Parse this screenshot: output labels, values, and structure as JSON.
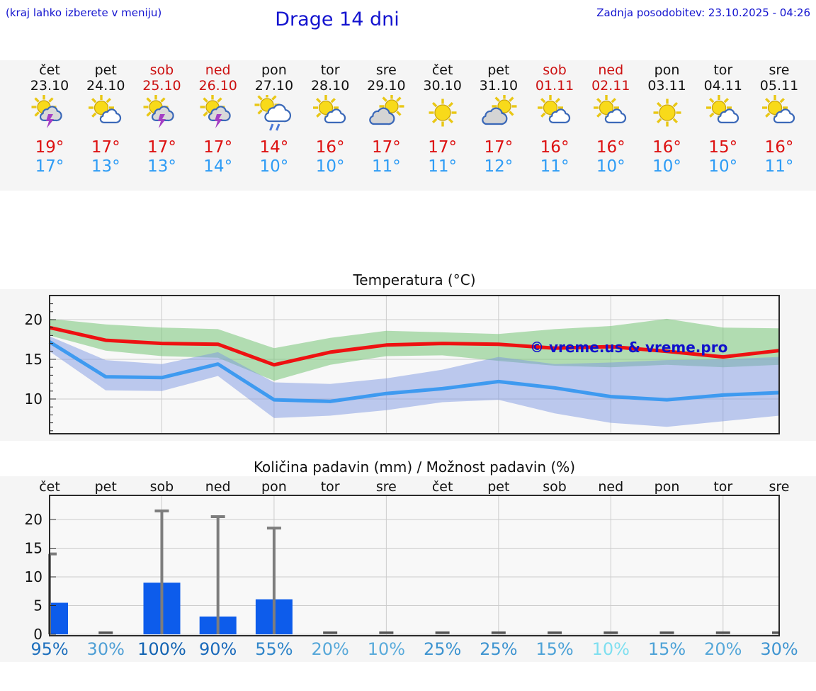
{
  "header": {
    "hint": "(kraj lahko izberete v meniju)",
    "title": "Drage 14 dni",
    "updated": "Zadnja posodobitev: 23.10.2025 - 04:26"
  },
  "forecast": {
    "days": [
      {
        "name": "čet",
        "date": "23.10",
        "weekend": false,
        "icon": "sun-thunder",
        "hi": "19°",
        "lo": "17°"
      },
      {
        "name": "pet",
        "date": "24.10",
        "weekend": false,
        "icon": "sun-cloud",
        "hi": "17°",
        "lo": "13°"
      },
      {
        "name": "sob",
        "date": "25.10",
        "weekend": true,
        "icon": "sun-thunder",
        "hi": "17°",
        "lo": "13°"
      },
      {
        "name": "ned",
        "date": "26.10",
        "weekend": true,
        "icon": "sun-thunder",
        "hi": "17°",
        "lo": "14°"
      },
      {
        "name": "pon",
        "date": "27.10",
        "weekend": false,
        "icon": "sun-rain",
        "hi": "14°",
        "lo": "10°"
      },
      {
        "name": "tor",
        "date": "28.10",
        "weekend": false,
        "icon": "sun-cloud",
        "hi": "16°",
        "lo": "10°"
      },
      {
        "name": "sre",
        "date": "29.10",
        "weekend": false,
        "icon": "cloud-sun",
        "hi": "17°",
        "lo": "11°"
      },
      {
        "name": "čet",
        "date": "30.10",
        "weekend": false,
        "icon": "sun",
        "hi": "17°",
        "lo": "11°"
      },
      {
        "name": "pet",
        "date": "31.10",
        "weekend": false,
        "icon": "cloud-sun",
        "hi": "17°",
        "lo": "12°"
      },
      {
        "name": "sob",
        "date": "01.11",
        "weekend": true,
        "icon": "sun-cloud",
        "hi": "16°",
        "lo": "11°"
      },
      {
        "name": "ned",
        "date": "02.11",
        "weekend": true,
        "icon": "sun-cloud",
        "hi": "16°",
        "lo": "10°"
      },
      {
        "name": "pon",
        "date": "03.11",
        "weekend": false,
        "icon": "sun",
        "hi": "16°",
        "lo": "10°"
      },
      {
        "name": "tor",
        "date": "04.11",
        "weekend": false,
        "icon": "sun-cloud",
        "hi": "15°",
        "lo": "10°"
      },
      {
        "name": "sre",
        "date": "05.11",
        "weekend": false,
        "icon": "sun-cloud",
        "hi": "16°",
        "lo": "11°"
      }
    ]
  },
  "chart_data": [
    {
      "type": "line",
      "title": "Temperatura (°C)",
      "watermark": "© vreme.us & vreme.pro",
      "x": [
        "čet",
        "pet",
        "sob",
        "ned",
        "pon",
        "tor",
        "sre",
        "čet",
        "pet",
        "sob",
        "ned",
        "pon",
        "tor",
        "sre"
      ],
      "ylim": [
        5.6,
        23.0
      ],
      "yticks": [
        10,
        15,
        20
      ],
      "grid": true,
      "legend_position": "none",
      "series": [
        {
          "name": "max_temp",
          "color": "#ee1111",
          "values": [
            19.0,
            17.4,
            17.0,
            16.9,
            14.3,
            15.9,
            16.8,
            17.0,
            16.9,
            16.4,
            16.6,
            16.0,
            15.3,
            16.1
          ]
        },
        {
          "name": "min_temp",
          "color": "#3e9af0",
          "values": [
            17.2,
            12.8,
            12.7,
            14.4,
            9.9,
            9.7,
            10.7,
            11.3,
            12.2,
            11.4,
            10.3,
            9.9,
            10.5,
            10.8
          ]
        },
        {
          "name": "max_temp_range_high",
          "color": "#b4e0af",
          "values": [
            20.1,
            19.4,
            19.0,
            18.8,
            16.4,
            17.7,
            18.6,
            18.4,
            18.2,
            18.8,
            19.2,
            20.1,
            19.0,
            18.9
          ]
        },
        {
          "name": "max_temp_range_low",
          "color": "#b4e0af",
          "values": [
            18.0,
            16.1,
            15.4,
            15.2,
            12.3,
            14.3,
            15.4,
            15.5,
            14.8,
            14.2,
            14.0,
            14.3,
            14.0,
            14.3
          ]
        },
        {
          "name": "min_temp_range_high",
          "color": "#bcc8ed",
          "values": [
            17.9,
            14.9,
            14.4,
            15.9,
            12.1,
            11.9,
            12.6,
            13.7,
            15.3,
            14.4,
            14.6,
            14.9,
            15.0,
            15.3
          ]
        },
        {
          "name": "min_temp_range_low",
          "color": "#bcc8ed",
          "values": [
            16.0,
            11.1,
            11.0,
            12.9,
            7.6,
            7.9,
            8.6,
            9.6,
            9.9,
            8.2,
            7.0,
            6.5,
            7.2,
            7.9
          ]
        }
      ]
    },
    {
      "type": "bar",
      "title": "Količina padavin (mm) / Možnost padavin (%)",
      "categories": [
        "čet",
        "pet",
        "sob",
        "ned",
        "pon",
        "tor",
        "sre",
        "čet",
        "pet",
        "sob",
        "ned",
        "pon",
        "tor",
        "sre"
      ],
      "values": [
        5.5,
        0,
        9.0,
        3.1,
        6.1,
        0,
        0,
        0,
        0,
        0,
        0,
        0,
        0,
        0
      ],
      "whisker_max": [
        14.0,
        0.3,
        21.5,
        20.5,
        18.5,
        0.3,
        0.2,
        0.3,
        0.3,
        0.2,
        0.2,
        0.2,
        0.3,
        0.3
      ],
      "ylim": [
        0,
        24.2
      ],
      "yticks": [
        0,
        5,
        10,
        15,
        20
      ],
      "grid": true,
      "bar_color": "#0d5ceb",
      "whisker_color": "#7d7d7d",
      "probabilities": [
        {
          "label": "95%",
          "color": "#1e70bd"
        },
        {
          "label": "30%",
          "color": "#4f9fd5"
        },
        {
          "label": "100%",
          "color": "#1263b2"
        },
        {
          "label": "90%",
          "color": "#1a6abb"
        },
        {
          "label": "55%",
          "color": "#2f85c9"
        },
        {
          "label": "20%",
          "color": "#57a8d9"
        },
        {
          "label": "10%",
          "color": "#5aabdb"
        },
        {
          "label": "25%",
          "color": "#3e94d0"
        },
        {
          "label": "25%",
          "color": "#3e94d0"
        },
        {
          "label": "15%",
          "color": "#4da2d7"
        },
        {
          "label": "10%",
          "color": "#7edff0"
        },
        {
          "label": "15%",
          "color": "#4da2d7"
        },
        {
          "label": "20%",
          "color": "#57a8d9"
        },
        {
          "label": "30%",
          "color": "#3f95d1"
        }
      ]
    }
  ],
  "colors": {
    "header_blue": "#1313cf",
    "weekend_red": "#cc1111",
    "high_temp": "#dd1111",
    "low_temp": "#2e9cf5",
    "strip_bg": "#f5f5f5",
    "watermark_blue": "#1111cc"
  }
}
